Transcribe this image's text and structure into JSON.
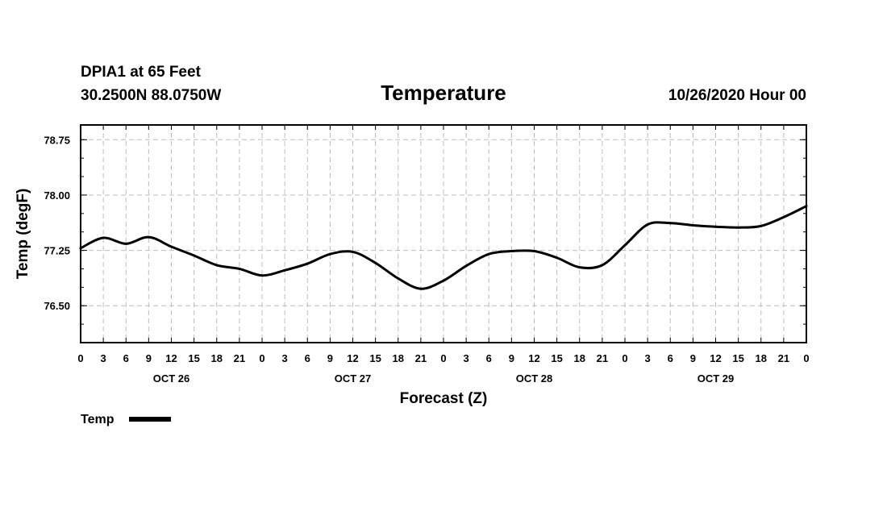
{
  "header": {
    "station": "DPIA1 at 65 Feet",
    "coords": "30.2500N 88.0750W",
    "title": "Temperature",
    "datetime": "10/26/2020 Hour 00"
  },
  "chart_data": {
    "type": "line",
    "title": "Temperature",
    "xlabel": "Forecast (Z)",
    "ylabel": "Temp (degF)",
    "ylim": [
      76.0,
      78.95
    ],
    "yticks": [
      76.5,
      77.25,
      78.0,
      78.75
    ],
    "ytick_labels": [
      "76.50",
      "77.25",
      "78.00",
      "78.75"
    ],
    "xlim": [
      0,
      96
    ],
    "xticks": [
      0,
      3,
      6,
      9,
      12,
      15,
      18,
      21,
      24,
      27,
      30,
      33,
      36,
      39,
      42,
      45,
      48,
      51,
      54,
      57,
      60,
      63,
      66,
      69,
      72,
      75,
      78,
      81,
      84,
      87,
      90,
      93,
      96
    ],
    "xtick_labels": [
      "0",
      "3",
      "6",
      "9",
      "12",
      "15",
      "18",
      "21",
      "0",
      "3",
      "6",
      "9",
      "12",
      "15",
      "18",
      "21",
      "0",
      "3",
      "6",
      "9",
      "12",
      "15",
      "18",
      "21",
      "0",
      "3",
      "6",
      "9",
      "12",
      "15",
      "18",
      "21",
      "0"
    ],
    "date_labels": [
      {
        "x": 12,
        "label": "OCT 26"
      },
      {
        "x": 36,
        "label": "OCT 27"
      },
      {
        "x": 60,
        "label": "OCT 28"
      },
      {
        "x": 84,
        "label": "OCT 29"
      }
    ],
    "grid": true,
    "legend": "bottom-left",
    "series": [
      {
        "name": "Temp",
        "color": "#000000",
        "x": [
          0,
          3,
          6,
          9,
          12,
          15,
          18,
          21,
          24,
          27,
          30,
          33,
          36,
          39,
          42,
          45,
          48,
          51,
          54,
          57,
          60,
          63,
          66,
          69,
          72,
          75,
          78,
          81,
          84,
          87,
          90,
          93,
          96
        ],
        "values": [
          77.28,
          77.42,
          77.34,
          77.43,
          77.3,
          77.18,
          77.05,
          77.0,
          76.91,
          76.98,
          77.07,
          77.2,
          77.23,
          77.08,
          76.87,
          76.73,
          76.84,
          77.04,
          77.2,
          77.24,
          77.24,
          77.15,
          77.02,
          77.05,
          77.32,
          77.6,
          77.62,
          77.59,
          77.57,
          77.56,
          77.58,
          77.7,
          77.85
        ]
      }
    ]
  }
}
